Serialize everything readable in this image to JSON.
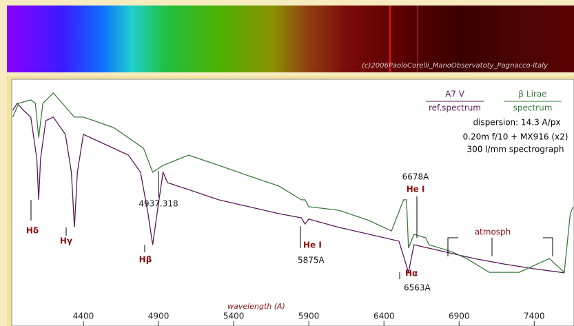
{
  "chart_data": {
    "type": "line",
    "xlabel": "wavelength (A)",
    "xlim": [
      3900,
      7660
    ],
    "ylim": [
      0,
      100
    ],
    "xticks": [
      4400,
      4900,
      5400,
      5900,
      6400,
      6900,
      7400
    ],
    "series": [
      {
        "name": "A7 V",
        "color": "#5a1a5a",
        "x": [
          3930,
          3960,
          4000,
          4050,
          4090,
          4102,
          4115,
          4150,
          4200,
          4280,
          4320,
          4340,
          4360,
          4400,
          4500,
          4600,
          4700,
          4780,
          4830,
          4861,
          4890,
          4930,
          4960,
          5100,
          5300,
          5500,
          5700,
          5850,
          5875,
          5900,
          6100,
          6300,
          6500,
          6563,
          6600,
          6800,
          7000,
          7200,
          7400,
          7600
        ],
        "values": [
          87.0,
          89.9,
          87.0,
          84.1,
          66.7,
          49.3,
          66.7,
          82.6,
          84.1,
          76.8,
          60.9,
          37.7,
          60.9,
          76.8,
          73.9,
          71.0,
          68.1,
          60.9,
          43.5,
          30.4,
          43.5,
          60.9,
          56.5,
          53.6,
          49.3,
          46.4,
          43.5,
          41.7,
          39.1,
          41.2,
          37.7,
          34.8,
          31.9,
          18.8,
          30.4,
          27.5,
          24.6,
          22.3,
          20.3,
          18.6
        ]
      },
      {
        "name": "β  Lirae",
        "color": "#3c7a3c",
        "x": [
          3930,
          3970,
          4050,
          4080,
          4102,
          4130,
          4200,
          4280,
          4340,
          4400,
          4600,
          4800,
          4861,
          4930,
          5100,
          5300,
          5500,
          5700,
          5850,
          5875,
          5900,
          6100,
          6300,
          6450,
          6530,
          6550,
          6563,
          6600,
          6678,
          6700,
          6850,
          6950,
          7100,
          7300,
          7500,
          7600,
          7640,
          7660
        ],
        "values": [
          84.1,
          89.9,
          91.3,
          89.9,
          75.4,
          89.9,
          94.2,
          88.4,
          84.1,
          84.1,
          79.7,
          71.0,
          60.9,
          63.8,
          68.1,
          63.8,
          59.4,
          55.1,
          49.3,
          49.3,
          46.4,
          44.9,
          40.6,
          36.2,
          49.3,
          49.3,
          29.0,
          34.8,
          33.3,
          30.4,
          27.5,
          24.6,
          18.8,
          18.8,
          24.6,
          18.8,
          43.5,
          46.4
        ]
      }
    ],
    "annotations": [
      "ref.spectrum",
      "spectrum",
      "dispersion: 14.3 A/px",
      "0.20m f/10 + MX916 (x2)",
      "300 l/mm spectrograph",
      "4937.318",
      "Hδ",
      "Hγ",
      "Hβ",
      "He I",
      "5875A",
      "6678A",
      "He I",
      "Hα",
      "6563A",
      "atmosph",
      "(c)2006PaoloCorelli_ManoObservatoty_Pagnacco-Italy"
    ]
  }
}
